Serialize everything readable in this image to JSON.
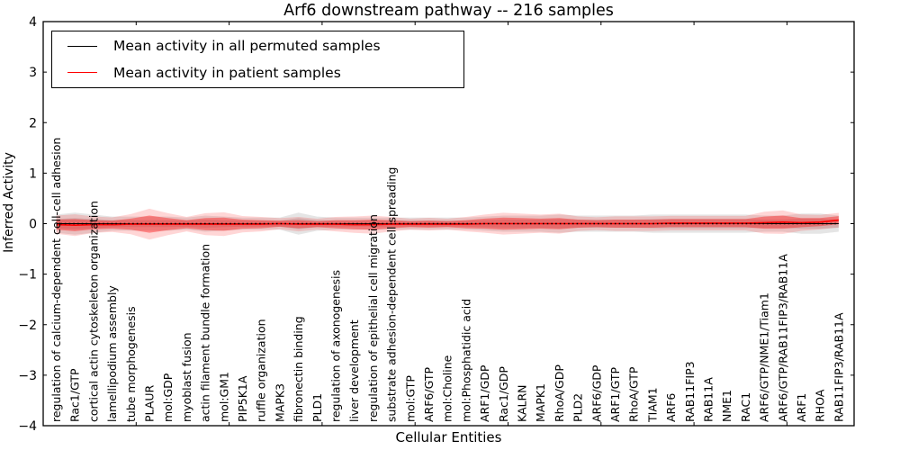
{
  "title": "Arf6 downstream pathway -- 216 samples",
  "legend": {
    "items": [
      {
        "label": "Mean activity in all permuted samples",
        "color": "#000000"
      },
      {
        "label": "Mean activity in patient samples",
        "color": "#ff0000"
      }
    ]
  },
  "axes": {
    "x_label": "Cellular Entities",
    "y_label": "Inferred Activity",
    "y_ticks": [
      "4",
      "3",
      "2",
      "1",
      "0",
      "−1",
      "−2",
      "−3",
      "−4"
    ]
  },
  "chart_data": {
    "type": "line",
    "title": "Arf6 downstream pathway -- 216 samples",
    "xlabel": "Cellular Entities",
    "ylabel": "Inferred Activity",
    "ylim": [
      -4,
      4
    ],
    "grid": false,
    "legend_position": "upper left",
    "sample_count_in_title": "216 samples",
    "categories": [
      "regulation of calcium-dependent cell-cell adhesion",
      "Rac1/GTP",
      "cortical actin cytoskeleton organization",
      "lamellipodium assembly",
      "tube morphogenesis",
      "PLAUR",
      "mol:GDP",
      "myoblast fusion",
      "actin filament bundle formation",
      "mol:GM1",
      "PIP5K1A",
      "ruffle organization",
      "MAPK3",
      "fibronectin binding",
      "PLD1",
      "regulation of axonogenesis",
      "liver development",
      "regulation of epithelial cell migration",
      "substrate adhesion-dependent cell spreading",
      "mol:GTP",
      "ARF6/GTP",
      "mol:Choline",
      "mol:Phosphatidic acid",
      "ARF1/GDP",
      "Rac1/GDP",
      "KALRN",
      "MAPK1",
      "RhoA/GDP",
      "PLD2",
      "ARF6/GDP",
      "ARF1/GTP",
      "RhoA/GTP",
      "TIAM1",
      "ARF6",
      "RAB11FIP3",
      "RAB11A",
      "NME1",
      "RAC1",
      "ARF6/GTP/NME1/Tiam1",
      "ARF6/GTP/RAB11FIP3/RAB11A",
      "ARF1",
      "RHOA",
      "RAB11FIP3/RAB11A"
    ],
    "series": [
      {
        "name": "Mean activity in all permuted samples",
        "color": "#000000",
        "mean": [
          0,
          0,
          0,
          0,
          0,
          0,
          0,
          0,
          0,
          0,
          0,
          0,
          0,
          0,
          0,
          0,
          0,
          0,
          0,
          0,
          0,
          0,
          0,
          0,
          0,
          0,
          0,
          0,
          0,
          0,
          0,
          0,
          0,
          0,
          0,
          0,
          0,
          0,
          0,
          0,
          0,
          0,
          0
        ],
        "std": [
          0.09,
          0.11,
          0.09,
          0.07,
          0.07,
          0.07,
          0.07,
          0.06,
          0.08,
          0.07,
          0.06,
          0.06,
          0.06,
          0.11,
          0.07,
          0.06,
          0.06,
          0.06,
          0.06,
          0.06,
          0.06,
          0.06,
          0.06,
          0.07,
          0.08,
          0.08,
          0.08,
          0.09,
          0.08,
          0.08,
          0.08,
          0.08,
          0.09,
          0.09,
          0.09,
          0.09,
          0.09,
          0.09,
          0.08,
          0.08,
          0.1,
          0.1,
          0.08
        ]
      },
      {
        "name": "Mean activity in patient samples",
        "color": "#ff0000",
        "mean": [
          -0.02,
          -0.03,
          -0.02,
          -0.02,
          -0.01,
          -0.01,
          -0.01,
          -0.01,
          -0.01,
          -0.01,
          -0.01,
          -0.01,
          0,
          -0.01,
          -0.01,
          -0.01,
          -0.02,
          -0.02,
          -0.01,
          -0.01,
          -0.01,
          -0.01,
          -0.01,
          0,
          0,
          0,
          0,
          0,
          0,
          0,
          0,
          0,
          0,
          0.01,
          0.01,
          0.01,
          0.01,
          0.01,
          0.02,
          0.03,
          0.02,
          0.03,
          0.07
        ],
        "std": [
          0.1,
          0.12,
          0.09,
          0.08,
          0.11,
          0.17,
          0.12,
          0.08,
          0.12,
          0.13,
          0.09,
          0.08,
          0.06,
          0.08,
          0.06,
          0.08,
          0.09,
          0.1,
          0.08,
          0.06,
          0.07,
          0.06,
          0.08,
          0.1,
          0.12,
          0.11,
          0.1,
          0.11,
          0.08,
          0.07,
          0.08,
          0.08,
          0.08,
          0.08,
          0.08,
          0.08,
          0.08,
          0.08,
          0.12,
          0.13,
          0.09,
          0.08,
          0.08
        ]
      }
    ]
  }
}
